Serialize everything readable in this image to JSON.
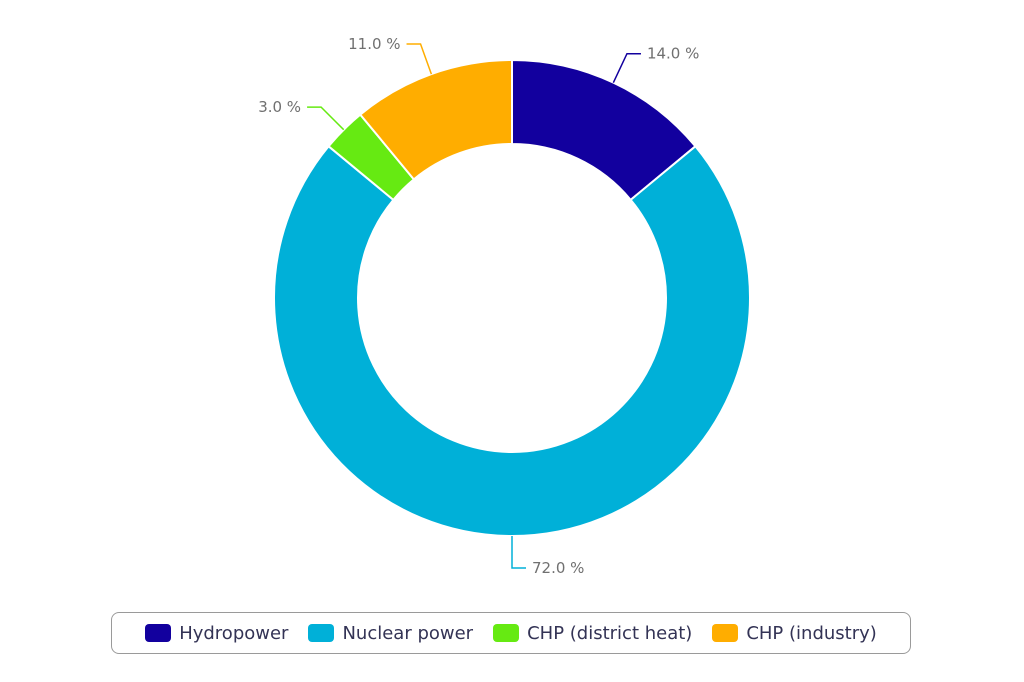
{
  "chart_data": {
    "type": "pie",
    "variant": "donut",
    "title": "",
    "categories": [
      "Hydropower",
      "Nuclear power",
      "CHP (district heat)",
      "CHP (industry)"
    ],
    "values": [
      14.0,
      72.0,
      3.0,
      11.0
    ],
    "data_labels": [
      "14.0 %",
      "72.0 %",
      "3.0 %",
      "11.0 %"
    ],
    "colors": [
      "#12009e",
      "#00b0d8",
      "#66ea12",
      "#ffad00"
    ],
    "legend_position": "bottom",
    "start_angle": "top, clockwise"
  }
}
